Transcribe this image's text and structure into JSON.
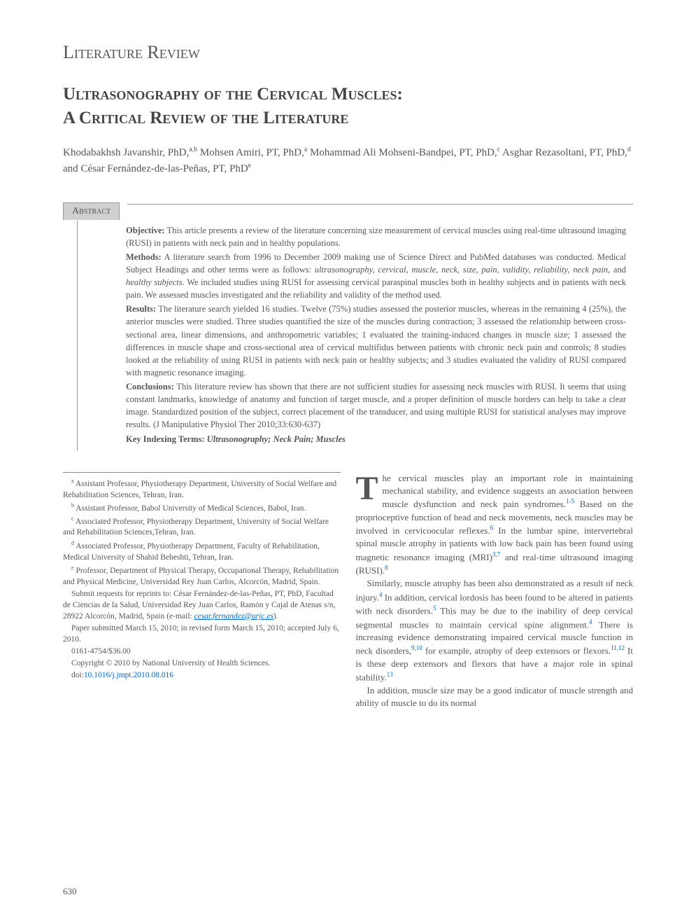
{
  "section_heading": "Literature Review",
  "title_line1": "Ultrasonography of the Cervical Muscles:",
  "title_line2": "A Critical Review of the Literature",
  "authors_html": "Khodabakhsh Javanshir, PhD,<sup>a,b</sup> Mohsen Amiri, PT, PhD,<sup>a</sup> Mohammad Ali Mohseni-Bandpei, PT, PhD,<sup>c</sup> Asghar Rezasoltani, PT, PhD,<sup>d</sup> and César Fernández-de-las-Peñas, PT, PhD<sup>e</sup>",
  "abstract_label": "Abstract",
  "abstract": {
    "objective_label": "Objective:",
    "objective": " This article presents a review of the literature concerning size measurement of cervical muscles using real-time ultrasound imaging (RUSI) in patients with neck pain and in healthy populations.",
    "methods_label": "Methods:",
    "methods_pre": " A literature search from 1996 to December 2009 making use of Science Direct and PubMed databases was conducted. Medical Subject Headings and other terms were as follows: ",
    "methods_terms": "ultrasonography, cervical, muscle, neck, size, pain, validity, reliability, neck pain,",
    "methods_and": " and ",
    "methods_terms2": "healthy subjects",
    "methods_post": ". We included studies using RUSI for assessing cervical paraspinal muscles both in healthy subjects and in patients with neck pain. We assessed muscles investigated and the reliability and validity of the method used.",
    "results_label": "Results:",
    "results": " The literature search yielded 16 studies. Twelve (75%) studies assessed the posterior muscles, whereas in the remaining 4 (25%), the anterior muscles were studied. Three studies quantified the size of the muscles during contraction; 3 assessed the relationship between cross-sectional area, linear dimensions, and anthropometric variables; 1 evaluated the training-induced changes in muscle size; 1 assessed the differences in muscle shape and cross-sectional area of cervical multifidus between patients with chronic neck pain and controls; 8 studies looked at the reliability of using RUSI in patients with neck pain or healthy subjects; and 3 studies evaluated the validity of RUSI compared with magnetic resonance imaging.",
    "conclusions_label": "Conclusions:",
    "conclusions": " This literature review has shown that there are not sufficient studies for assessing neck muscles with RUSI. It seems that using constant landmarks, knowledge of anatomy and function of target muscle, and a proper definition of muscle borders can help to take a clear image. Standardized position of the subject, correct placement of the transducer, and using multiple RUSI for statistical analyses may improve results. (J Manipulative Physiol Ther 2010;33:630-637)",
    "key_label": "Key Indexing Terms:",
    "key_terms": " Ultrasonography; Neck Pain; Muscles"
  },
  "affiliations": {
    "a": "Assistant Professor, Physiotherapy Department, University of Social Welfare and Rehabilitation Sciences, Tehran, Iran.",
    "b": "Assistant Professor, Babol University of Medical Sciences, Babol, Iran.",
    "c": "Associated Professor, Physiotherapy Department, University of Social Welfare and Rehabilitation Sciences,Tehran, Iran.",
    "d": "Associated Professor, Physiotherapy Department, Faculty of Rehabilitation, Medical University of Shahid Beheshti, Tehran, Iran.",
    "e": "Professor, Department of Physical Therapy, Occupational Therapy, Rehabilitation and Physical Medicine, Universidad Rey Juan Carlos, Alcorcón, Madrid, Spain.",
    "reprint_pre": "Submit requests for reprints to: César Fernández-de-las-Peñas, PT, PhD, Facultad de Ciencias de la Salud, Universidad Rey Juan Carlos, Ramón y Cajal de Atenas s/n, 28922 Alcorcón, Madrid, Spain (e-mail: ",
    "email": "cesar.fernandez@urjc.es",
    "reprint_post": ").",
    "dates": "Paper submitted March 15, 2010; in revised form March 15, 2010; accepted July 6, 2010.",
    "issn": "0161-4754/$36.00",
    "copyright": "Copyright © 2010 by National University of Health Sciences.",
    "doi_pre": "doi:",
    "doi": "10.1016/j.jmpt.2010.08.016"
  },
  "body": {
    "p1": "he cervical muscles play an important role in maintaining mechanical stability, and evidence suggests an association between muscle dysfunction and neck pain syndromes.<sup>1-5</sup> Based on the proprioceptive function of head and neck movements, neck muscles may be involved in cervicoocular reflexes.<sup>6</sup> In the lumbar spine, intervertebral spinal muscle atrophy in patients with low back pain has been found using magnetic resonance imaging (MRI)<sup>3,7</sup> and real-time ultrasound imaging (RUSI).<sup>8</sup>",
    "p2": "Similarly, muscle atrophy has been also demonstrated as a result of neck injury.<sup>4</sup> In addition, cervical lordosis has been found to be altered in patients with neck disorders.<sup>5</sup> This may be due to the inability of deep cervical segmental muscles to maintain cervical spine alignment.<sup>4</sup> There is increasing evidence demonstrating impaired cervical muscle function in neck disorders,<sup>9,10</sup> for example, atrophy of deep extensors or flexors.<sup>11,12</sup> It is these deep extensors and flexors that have a major role in spinal stability.<sup>13</sup>",
    "p3": "In addition, muscle size may be a good indicator of muscle strength and ability of muscle to do its normal"
  },
  "page_number": "630",
  "colors": {
    "text": "#4a4a4a",
    "tab_bg": "#cfcfcf",
    "rule": "#999999",
    "link": "#0066cc",
    "bg": "#ffffff"
  },
  "typography": {
    "section_heading_size": 26,
    "title_size": 25,
    "authors_size": 15,
    "abstract_size": 12.5,
    "body_size": 13,
    "affil_size": 11.5,
    "dropcap_size": 48
  }
}
